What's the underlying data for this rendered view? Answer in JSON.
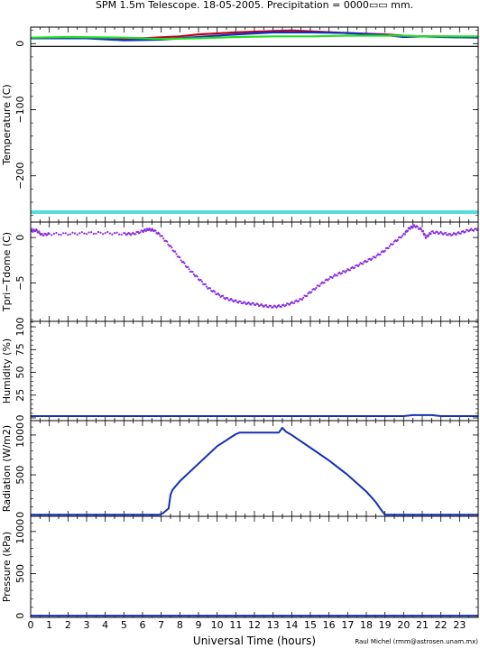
{
  "title": "SPM 1.5m Telescope. 18-05-2005. Precipitation = 0000▭▭ mm.",
  "xlabel": "Universal Time (hours)",
  "credit": "Raul Michel (rmm@astrosen.unam.mx)",
  "colors": {
    "frame": "#000000",
    "temp_red": "#c0001a",
    "temp_blue": "#1030c0",
    "temp_green": "#22dd22",
    "temp_cyan": "#55dddd",
    "zero_line": "#000000",
    "tdiff": "#8a2be2",
    "blue": "#1530b0"
  },
  "chart_data": [
    {
      "type": "line",
      "ylabel": "Temperature (C)",
      "xlim": [
        0,
        24
      ],
      "ylim": [
        -270,
        25
      ],
      "yticks": [
        0,
        -100,
        -200
      ],
      "series": [
        {
          "color": "#c0001a",
          "x": [
            0,
            3,
            6,
            8,
            9,
            11,
            13,
            14,
            17,
            19,
            20,
            21,
            22,
            24
          ],
          "y": [
            8,
            8,
            8,
            11,
            14,
            17,
            19,
            20,
            16,
            14,
            12,
            11,
            11,
            10
          ]
        },
        {
          "color": "#1030c0",
          "x": [
            0,
            3,
            5,
            7,
            9,
            11,
            13,
            15,
            17,
            19,
            20,
            21,
            22,
            24
          ],
          "y": [
            8,
            8,
            5,
            6,
            10,
            14,
            17,
            17,
            16,
            13,
            10,
            11,
            10,
            9
          ]
        },
        {
          "color": "#22dd22",
          "x": [
            0,
            2,
            5,
            7,
            9,
            11,
            13,
            15,
            17,
            19,
            20,
            21,
            22,
            24
          ],
          "y": [
            9,
            10,
            9,
            7,
            8,
            10,
            11,
            11,
            12,
            12,
            12,
            11,
            11,
            11
          ]
        },
        {
          "color": "#55dddd",
          "x": [
            0,
            24
          ],
          "y": [
            -255,
            -255
          ]
        }
      ]
    },
    {
      "type": "scatter",
      "ylabel": "Tpri−Tdome (C)",
      "xlim": [
        0,
        24
      ],
      "ylim": [
        -9.2,
        1.7
      ],
      "yticks": [
        0,
        -5
      ],
      "series": [
        {
          "color": "#8a2be2",
          "x": [
            0,
            0.3,
            0.6,
            1,
            2,
            3,
            4,
            5,
            5.5,
            6,
            6.3,
            6.6,
            7,
            7.5,
            8,
            8.5,
            9,
            9.5,
            10,
            10.5,
            11,
            11.5,
            12,
            12.5,
            13,
            13.5,
            14,
            14.5,
            15,
            15.5,
            16,
            16.5,
            17,
            17.5,
            18,
            18.5,
            19,
            19.5,
            20,
            20.3,
            20.6,
            21,
            21.2,
            21.5,
            22,
            22.5,
            23,
            23.5,
            24
          ],
          "y": [
            0.7,
            0.8,
            0.3,
            0.4,
            0.4,
            0.5,
            0.5,
            0.4,
            0.4,
            0.7,
            0.9,
            0.8,
            0.2,
            -1.0,
            -2.3,
            -3.5,
            -4.5,
            -5.5,
            -6.2,
            -6.7,
            -7.0,
            -7.2,
            -7.3,
            -7.5,
            -7.6,
            -7.5,
            -7.2,
            -6.8,
            -6.0,
            -5.2,
            -4.5,
            -4.0,
            -3.6,
            -3.1,
            -2.6,
            -2.1,
            -1.4,
            -0.5,
            0.3,
            1.0,
            1.3,
            0.8,
            0.0,
            0.6,
            0.5,
            0.3,
            0.5,
            0.8,
            0.9
          ]
        }
      ]
    },
    {
      "type": "line",
      "ylabel": "Humidity (%)",
      "xlim": [
        0,
        24
      ],
      "ylim": [
        -3,
        106
      ],
      "yticks": [
        0,
        25,
        50,
        75,
        100
      ],
      "series": [
        {
          "color": "#1530b0",
          "x": [
            0,
            20,
            20.5,
            21.5,
            22,
            24
          ],
          "y": [
            2,
            2,
            3,
            3,
            2,
            2
          ]
        }
      ]
    },
    {
      "type": "line",
      "ylabel": "Radiation (W/m2)",
      "xlim": [
        0,
        24
      ],
      "ylim": [
        -20,
        1180
      ],
      "yticks": [
        0,
        500,
        1000
      ],
      "series": [
        {
          "color": "#1530b0",
          "x": [
            0,
            6.9,
            7.1,
            7.4,
            7.5,
            7.6,
            8,
            9,
            10,
            11,
            11.2,
            12,
            13,
            13.3,
            13.5,
            13.7,
            14,
            15,
            16,
            17,
            18,
            18.5,
            18.8,
            19,
            24
          ],
          "y": [
            0,
            0,
            20,
            80,
            250,
            310,
            420,
            640,
            860,
            1010,
            1030,
            1030,
            1030,
            1030,
            1090,
            1040,
            1000,
            840,
            680,
            500,
            290,
            160,
            60,
            0,
            0
          ]
        }
      ]
    },
    {
      "type": "line",
      "ylabel": "Pressure (kPa)",
      "xlim": [
        0,
        24
      ],
      "ylim": [
        -20,
        1180
      ],
      "yticks": [
        0,
        500,
        1000
      ],
      "series": [
        {
          "color": "#1530b0",
          "x": [
            0,
            24
          ],
          "y": [
            0,
            0
          ]
        }
      ]
    }
  ]
}
